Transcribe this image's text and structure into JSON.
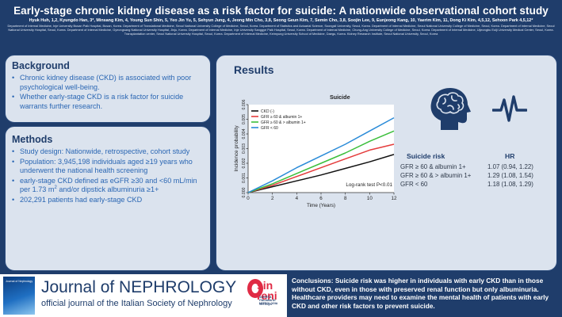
{
  "header": {
    "title": "Early-stage chronic kidney disease as a risk factor for suicide: A nationwide observational cohort study",
    "authors": "Hyuk Huh, 1,2, Kyungdo Han, 3*, Minsang Kim, 4, Young Sun Shin, 5, Yeo Jin Yu, 5, Sehyun Jung, 4, Jeong Min Cho, 3,8, Seong Geun Kim, 7, Semin Cho, 3,8, Soojin Lee, 9, Eunjeong Kang, 10, Yaerim Kim, 11, Dong Ki Kim, 4,5,12, Sehoon Park 4,5,12*",
    "affiliations": "Department of Internal Medicine, Inje University Busan Paik Hospital, Busan, Korea. Department of Translational Medicine, Seoul National University College of Medicine, Seoul, Korea. Department of Statistics and Actuarial Science, Soongsil University, Seoul, Korea. Department of Internal Medicine, Seoul National University College of Medicine, Seoul, Korea. Department of Internal Medicine, Seoul National University Hospital, Seoul, Korea. Department of Internal Medicine, Gyeongsang National University Hospital, Jinju, Korea. Department of Internal Medicine, Inje University Sanggye Paik Hospital, Seoul, Korea. Department of Internal Medicine, Chung-Ang University College of Medicine, Seoul, Korea. Department of Internal Medicine, Uijeongbu Eulji University Medical Center, Seoul, Korea. Transplantation center, Seoul National University Hospital, Seoul, Korea. Department of Internal Medicine, Keimyung University School of Medicine, Daegu, Korea. Kidney Research Institute, Seoul National University, Seoul, Korea"
  },
  "background": {
    "heading": "Background",
    "items": [
      "Chronic kidney disease (CKD) is associated with poor psychological well-being.",
      "Whether early-stage CKD is a risk factor for suicide warrants further research."
    ]
  },
  "methods": {
    "heading": "Methods",
    "items": [
      "Study design: Nationwide, retrospective, cohort study",
      "Population: 3,945,198 individuals aged ≥19 years who underwent the national health screening",
      "202,291 patients had early-stage CKD"
    ],
    "ckd_def_pre": "early-stage CKD defined as eGFR ≥30 and <60 mL/min per 1.73 m",
    "ckd_def_sup": "2",
    "ckd_def_post": " and/or dipstick albuminuria ≥1+"
  },
  "results": {
    "heading": "Results",
    "risk_header": "Suicide risk",
    "hr_header": "HR",
    "rows": [
      {
        "group": "GFR ≥ 60 & albumin 1+",
        "hr": "1.07 (0.94, 1.22)"
      },
      {
        "group": "GFR ≥ 60 & > albumin 1+",
        "hr": "1.29 (1.08, 1.54)"
      },
      {
        "group": "GFR < 60",
        "hr": "1.18 (1.08, 1.29)"
      }
    ]
  },
  "chart_data": {
    "type": "line",
    "title": "Suicide",
    "xlabel": "Time (Years)",
    "ylabel": "Incidence probability",
    "xlim": [
      0,
      12
    ],
    "ylim": [
      0,
      0.006
    ],
    "x_ticks": [
      0,
      2,
      4,
      6,
      8,
      10,
      12
    ],
    "y_ticks": [
      "0.000",
      "0.001",
      "0.002",
      "0.003",
      "0.004",
      "0.005",
      "0.006"
    ],
    "annotation": "Log-rank test P<0.01",
    "series": [
      {
        "name": "CKD (-)",
        "color": "#111111",
        "x": [
          0,
          2,
          4,
          6,
          8,
          10,
          12
        ],
        "y": [
          0,
          0.0004,
          0.0008,
          0.0012,
          0.00165,
          0.0021,
          0.0026
        ]
      },
      {
        "name": "GFR ≥ 60 & albumin 1+",
        "color": "#e43c3c",
        "x": [
          0,
          2,
          4,
          6,
          8,
          10,
          12
        ],
        "y": [
          0,
          0.0005,
          0.0011,
          0.0017,
          0.0023,
          0.0029,
          0.0033
        ]
      },
      {
        "name": "GFR ≥ 60 & > albumin 1+",
        "color": "#3cbf3c",
        "x": [
          0,
          2,
          4,
          6,
          8,
          10,
          12
        ],
        "y": [
          0,
          0.0006,
          0.0013,
          0.002,
          0.0027,
          0.0035,
          0.0042
        ]
      },
      {
        "name": "GFR < 60",
        "color": "#2a8bd8",
        "x": [
          0,
          2,
          4,
          6,
          8,
          10,
          12
        ],
        "y": [
          0,
          0.0008,
          0.0017,
          0.0025,
          0.0033,
          0.0042,
          0.0051
        ]
      }
    ]
  },
  "footer": {
    "journal_cover_text": "Journal of Nephrology",
    "journal_title": "Journal of NEPHROLOGY",
    "journal_subtitle": "official journal of the Italian Society of Nephrology",
    "sin_logo": "sin",
    "sin_logo_line2": "reni",
    "sin_logo_sub": "SOCIETÀ ITALIANA DI NEFROLOGIA",
    "sin_logo_sub2": "Nefrologia",
    "conclusions_label": "Conclusions:",
    "conclusions_text": " Suicide risk was higher in individuals with early CKD than in those without CKD, even in those with preserved renal function but only albuminuria. Healthcare providers may need to examine the mental health of patients with early CKD and other risk factors to prevent suicide."
  },
  "colors": {
    "navy": "#1f3d6b",
    "panel": "#dbe3ee",
    "bullet_text": "#2a66b3",
    "accent_red": "#e02b45"
  }
}
